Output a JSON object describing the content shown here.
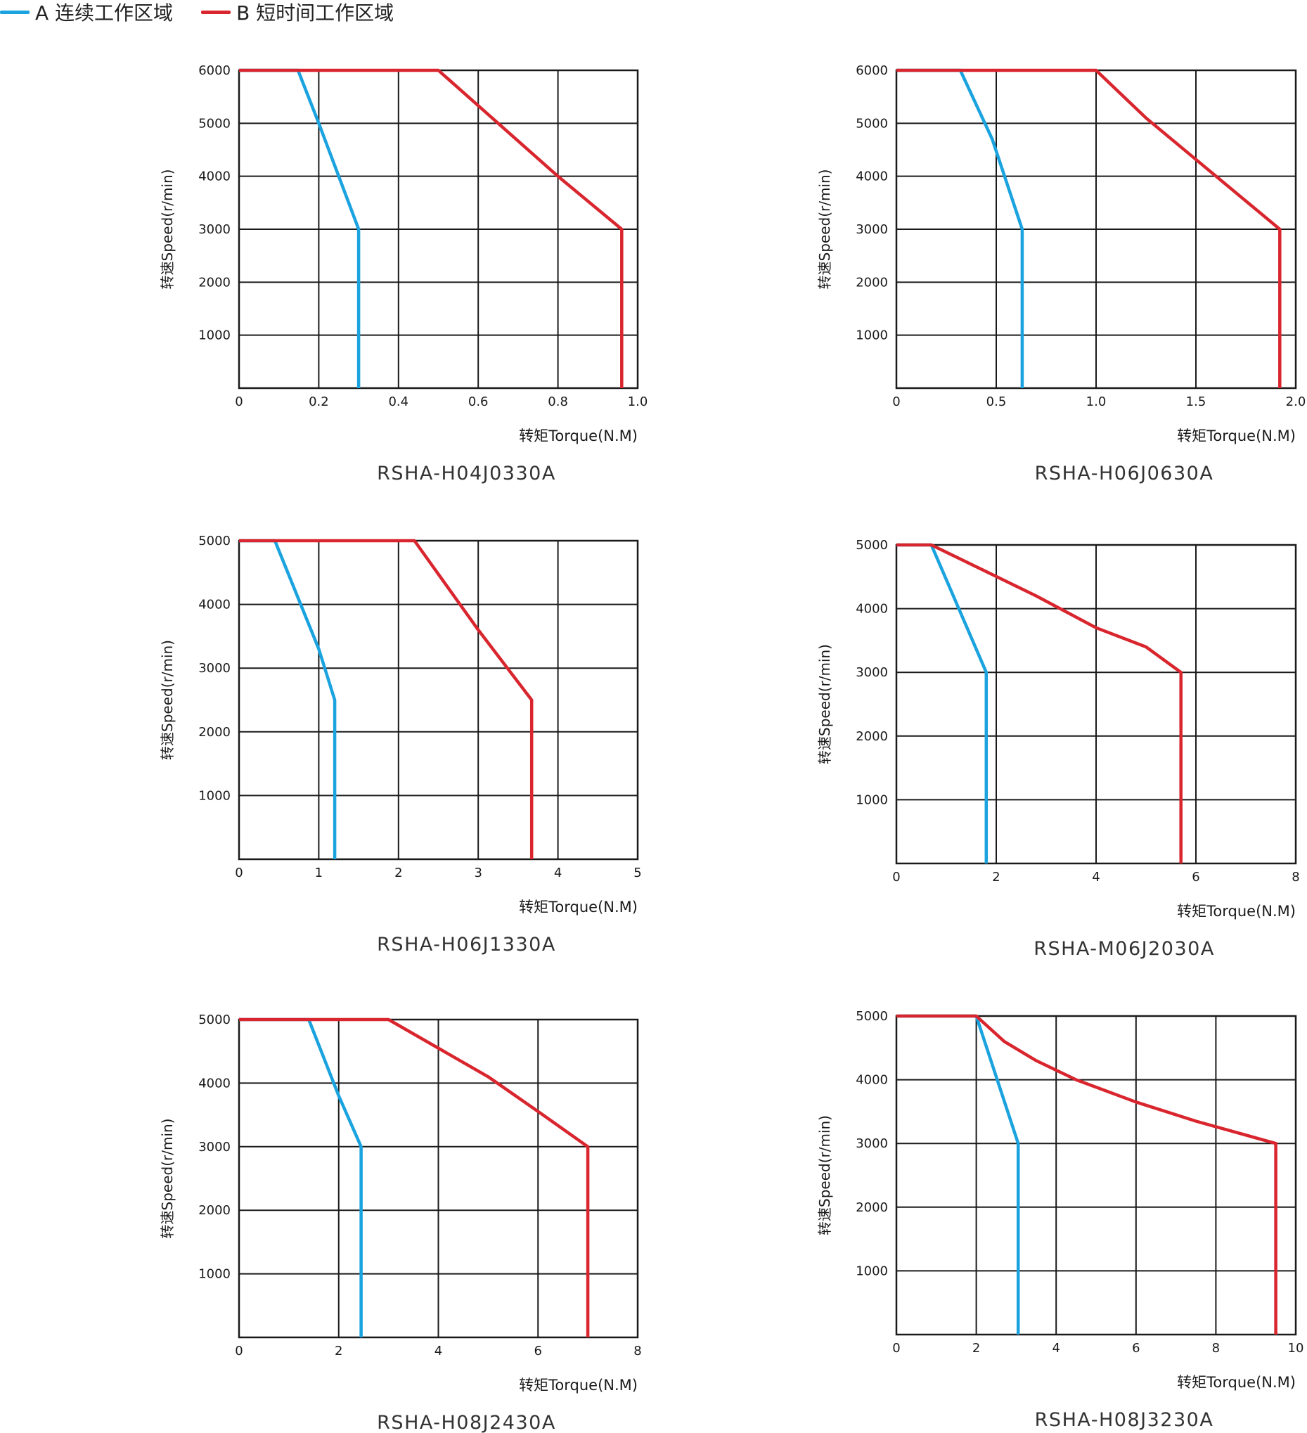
{
  "legend": {
    "items": [
      {
        "label": "A 连续工作区域",
        "color": "#1aa3df"
      },
      {
        "label": "B 短时间工作区域",
        "color": "#d9262e"
      }
    ]
  },
  "colors": {
    "series_a": "#1aa3df",
    "series_b": "#d9262e",
    "grid": "#1a1a1a"
  },
  "chart_data": [
    {
      "type": "line",
      "caption": "RSHA-H04J0330A",
      "xlabel": "转矩Torque(N.M)",
      "ylabel": "转速Speed(r/min)",
      "xlim": [
        0,
        1.0
      ],
      "ylim": [
        0,
        6000
      ],
      "xticks": [
        "0",
        "0.2",
        "0.4",
        "0.6",
        "0.8",
        "1.0"
      ],
      "yticks": [
        "1000",
        "2000",
        "3000",
        "4000",
        "5000",
        "6000"
      ],
      "grid": true,
      "series": [
        {
          "name": "A 连续工作区域",
          "x": [
            0,
            0.148,
            0.2,
            0.25,
            0.3,
            0.3
          ],
          "y": [
            6000,
            6000,
            5000,
            4000,
            3000,
            0
          ]
        },
        {
          "name": "B 短时间工作区域",
          "x": [
            0,
            0.5,
            0.8,
            0.96,
            0.96
          ],
          "y": [
            6000,
            6000,
            4000,
            3000,
            0
          ]
        }
      ]
    },
    {
      "type": "line",
      "caption": "RSHA-H06J0630A",
      "xlabel": "转矩Torque(N.M)",
      "ylabel": "转速Speed(r/min)",
      "xlim": [
        0,
        2.0
      ],
      "ylim": [
        0,
        6000
      ],
      "xticks": [
        "0",
        "0.5",
        "1.0",
        "1.5",
        "2.0"
      ],
      "yticks": [
        "1000",
        "2000",
        "3000",
        "4000",
        "5000",
        "6000"
      ],
      "grid": true,
      "series": [
        {
          "name": "A 连续工作区域",
          "x": [
            0,
            0.32,
            0.48,
            0.63,
            0.63
          ],
          "y": [
            6000,
            6000,
            4700,
            3000,
            0
          ]
        },
        {
          "name": "B 短时间工作区域",
          "x": [
            0,
            1.0,
            1.25,
            1.92,
            1.92
          ],
          "y": [
            6000,
            6000,
            5100,
            3000,
            0
          ]
        }
      ]
    },
    {
      "type": "line",
      "caption": "RSHA-H06J1330A",
      "xlabel": "转矩Torque(N.M)",
      "ylabel": "转速Speed(r/min)",
      "xlim": [
        0,
        5
      ],
      "ylim": [
        0,
        5000
      ],
      "xticks": [
        "0",
        "1",
        "2",
        "3",
        "4",
        "5"
      ],
      "yticks": [
        "1000",
        "2000",
        "3000",
        "4000",
        "5000"
      ],
      "grid": true,
      "series": [
        {
          "name": "A 连续工作区域",
          "x": [
            0,
            0.45,
            1.0,
            1.2,
            1.2
          ],
          "y": [
            5000,
            5000,
            3300,
            2500,
            0
          ]
        },
        {
          "name": "B 短时间工作区域",
          "x": [
            0,
            2.2,
            3.0,
            3.67,
            3.67
          ],
          "y": [
            5000,
            5000,
            3600,
            2500,
            0
          ]
        }
      ]
    },
    {
      "type": "line",
      "caption": "RSHA-M06J2030A",
      "xlabel": "转矩Torque(N.M)",
      "ylabel": "转速Speed(r/min)",
      "xlim": [
        0,
        8
      ],
      "ylim": [
        0,
        5000
      ],
      "xticks": [
        "0",
        "2",
        "4",
        "6",
        "8"
      ],
      "yticks": [
        "1000",
        "2000",
        "3000",
        "4000",
        "5000"
      ],
      "grid": true,
      "series": [
        {
          "name": "A 连续工作区域",
          "x": [
            0,
            0.7,
            1.8,
            1.8
          ],
          "y": [
            5000,
            5000,
            3000,
            0
          ]
        },
        {
          "name": "B 短时间工作区域",
          "x": [
            0,
            0.7,
            2.8,
            4.0,
            5.0,
            5.7,
            5.7
          ],
          "y": [
            5000,
            5000,
            4200,
            3700,
            3400,
            3000,
            0
          ]
        }
      ]
    },
    {
      "type": "line",
      "caption": "RSHA-H08J2430A",
      "xlabel": "转矩Torque(N.M)",
      "ylabel": "转速Speed(r/min)",
      "xlim": [
        0,
        8
      ],
      "ylim": [
        0,
        5000
      ],
      "xticks": [
        "0",
        "2",
        "4",
        "6",
        "8"
      ],
      "yticks": [
        "1000",
        "2000",
        "3000",
        "4000",
        "5000"
      ],
      "grid": true,
      "series": [
        {
          "name": "A 连续工作区域",
          "x": [
            0,
            1.4,
            2.0,
            2.45,
            2.45
          ],
          "y": [
            5000,
            5000,
            3800,
            3000,
            0
          ]
        },
        {
          "name": "B 短时间工作区域",
          "x": [
            0,
            3.0,
            5.0,
            6.1,
            7.0,
            7.0
          ],
          "y": [
            5000,
            5000,
            4100,
            3500,
            3000,
            0
          ]
        }
      ]
    },
    {
      "type": "line",
      "caption": "RSHA-H08J3230A",
      "xlabel": "转矩Torque(N.M)",
      "ylabel": "转速Speed(r/min)",
      "xlim": [
        0,
        10
      ],
      "ylim": [
        0,
        5000
      ],
      "xticks": [
        "0",
        "2",
        "4",
        "6",
        "8",
        "10"
      ],
      "yticks": [
        "1000",
        "2000",
        "3000",
        "4000",
        "5000"
      ],
      "grid": true,
      "series": [
        {
          "name": "A 连续工作区域",
          "x": [
            0,
            2.0,
            3.05,
            3.05
          ],
          "y": [
            5000,
            5000,
            3000,
            0
          ]
        },
        {
          "name": "B 短时间工作区域",
          "x": [
            0,
            2.0,
            2.7,
            3.5,
            4.5,
            6.0,
            7.5,
            9.5,
            9.5
          ],
          "y": [
            5000,
            5000,
            4600,
            4300,
            4000,
            3650,
            3350,
            3000,
            0
          ]
        }
      ]
    }
  ]
}
